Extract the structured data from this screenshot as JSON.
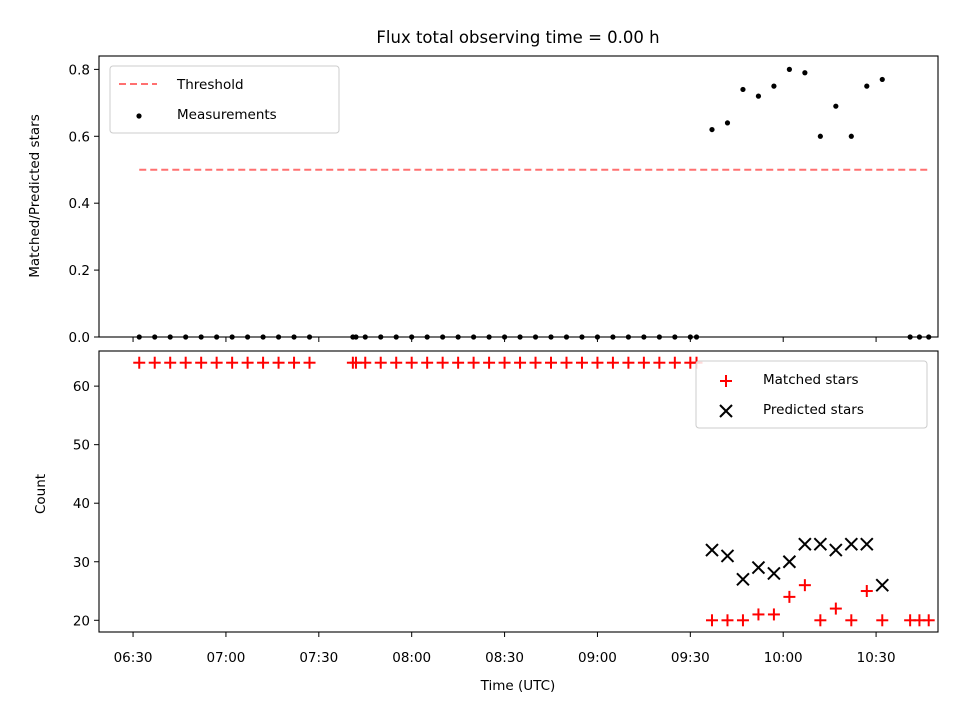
{
  "chart_data": [
    {
      "type": "scatter",
      "title": "Flux total observing time = 0.00 h",
      "xlabel": "",
      "ylabel": "Matched/Predicted stars",
      "xlim": [
        "06:19",
        "10:50"
      ],
      "ylim": [
        0,
        0.84
      ],
      "yticks": [
        0.0,
        0.2,
        0.4,
        0.6,
        0.8
      ],
      "legend_position": "upper-left",
      "threshold": {
        "name": "Threshold",
        "color": "#ff7070",
        "style": "dashed",
        "y": 0.5,
        "x_range": [
          "06:32",
          "10:47"
        ]
      },
      "series": [
        {
          "name": "Measurements",
          "color": "#000000",
          "marker": "dot",
          "points": [
            [
              "06:32",
              0.0
            ],
            [
              "06:37",
              0.0
            ],
            [
              "06:42",
              0.0
            ],
            [
              "06:47",
              0.0
            ],
            [
              "06:52",
              0.0
            ],
            [
              "06:57",
              0.0
            ],
            [
              "07:02",
              0.0
            ],
            [
              "07:07",
              0.0
            ],
            [
              "07:12",
              0.0
            ],
            [
              "07:17",
              0.0
            ],
            [
              "07:22",
              0.0
            ],
            [
              "07:27",
              0.0
            ],
            [
              "07:41",
              0.0
            ],
            [
              "07:42",
              0.0
            ],
            [
              "07:45",
              0.0
            ],
            [
              "07:50",
              0.0
            ],
            [
              "07:55",
              0.0
            ],
            [
              "08:00",
              0.0
            ],
            [
              "08:05",
              0.0
            ],
            [
              "08:10",
              0.0
            ],
            [
              "08:15",
              0.0
            ],
            [
              "08:20",
              0.0
            ],
            [
              "08:25",
              0.0
            ],
            [
              "08:30",
              0.0
            ],
            [
              "08:35",
              0.0
            ],
            [
              "08:40",
              0.0
            ],
            [
              "08:45",
              0.0
            ],
            [
              "08:50",
              0.0
            ],
            [
              "08:55",
              0.0
            ],
            [
              "09:00",
              0.0
            ],
            [
              "09:05",
              0.0
            ],
            [
              "09:10",
              0.0
            ],
            [
              "09:15",
              0.0
            ],
            [
              "09:20",
              0.0
            ],
            [
              "09:25",
              0.0
            ],
            [
              "09:30",
              0.0
            ],
            [
              "09:32",
              0.0
            ],
            [
              "09:37",
              0.62
            ],
            [
              "09:42",
              0.64
            ],
            [
              "09:47",
              0.74
            ],
            [
              "09:52",
              0.72
            ],
            [
              "09:57",
              0.75
            ],
            [
              "10:02",
              0.8
            ],
            [
              "10:07",
              0.79
            ],
            [
              "10:12",
              0.6
            ],
            [
              "10:17",
              0.69
            ],
            [
              "10:22",
              0.6
            ],
            [
              "10:27",
              0.75
            ],
            [
              "10:32",
              0.77
            ],
            [
              "10:41",
              0.0
            ],
            [
              "10:44",
              0.0
            ],
            [
              "10:47",
              0.0
            ]
          ]
        }
      ]
    },
    {
      "type": "scatter",
      "title": "",
      "xlabel": "Time (UTC)",
      "ylabel": "Count",
      "xlim": [
        "06:19",
        "10:50"
      ],
      "ylim": [
        18,
        66
      ],
      "yticks": [
        20,
        30,
        40,
        50,
        60
      ],
      "xticks": [
        "06:30",
        "07:00",
        "07:30",
        "08:00",
        "08:30",
        "09:00",
        "09:30",
        "10:00",
        "10:30"
      ],
      "legend_position": "upper-right",
      "series": [
        {
          "name": "Matched stars",
          "color": "#ff0000",
          "marker": "plus",
          "points": [
            [
              "06:32",
              64
            ],
            [
              "06:37",
              64
            ],
            [
              "06:42",
              64
            ],
            [
              "06:47",
              64
            ],
            [
              "06:52",
              64
            ],
            [
              "06:57",
              64
            ],
            [
              "07:02",
              64
            ],
            [
              "07:07",
              64
            ],
            [
              "07:12",
              64
            ],
            [
              "07:17",
              64
            ],
            [
              "07:22",
              64
            ],
            [
              "07:27",
              64
            ],
            [
              "07:41",
              64
            ],
            [
              "07:42",
              64
            ],
            [
              "07:45",
              64
            ],
            [
              "07:50",
              64
            ],
            [
              "07:55",
              64
            ],
            [
              "08:00",
              64
            ],
            [
              "08:05",
              64
            ],
            [
              "08:10",
              64
            ],
            [
              "08:15",
              64
            ],
            [
              "08:20",
              64
            ],
            [
              "08:25",
              64
            ],
            [
              "08:30",
              64
            ],
            [
              "08:35",
              64
            ],
            [
              "08:40",
              64
            ],
            [
              "08:45",
              64
            ],
            [
              "08:50",
              64
            ],
            [
              "08:55",
              64
            ],
            [
              "09:00",
              64
            ],
            [
              "09:05",
              64
            ],
            [
              "09:10",
              64
            ],
            [
              "09:15",
              64
            ],
            [
              "09:20",
              64
            ],
            [
              "09:25",
              64
            ],
            [
              "09:30",
              64
            ],
            [
              "09:32",
              64
            ],
            [
              "09:37",
              20
            ],
            [
              "09:42",
              20
            ],
            [
              "09:47",
              20
            ],
            [
              "09:52",
              21
            ],
            [
              "09:57",
              21
            ],
            [
              "10:02",
              24
            ],
            [
              "10:07",
              26
            ],
            [
              "10:12",
              20
            ],
            [
              "10:17",
              22
            ],
            [
              "10:22",
              20
            ],
            [
              "10:27",
              25
            ],
            [
              "10:32",
              20
            ],
            [
              "10:41",
              20
            ],
            [
              "10:44",
              20
            ],
            [
              "10:47",
              20
            ]
          ]
        },
        {
          "name": "Predicted stars",
          "color": "#000000",
          "marker": "x",
          "points": [
            [
              "09:37",
              32
            ],
            [
              "09:42",
              31
            ],
            [
              "09:47",
              27
            ],
            [
              "09:52",
              29
            ],
            [
              "09:57",
              28
            ],
            [
              "10:02",
              30
            ],
            [
              "10:07",
              33
            ],
            [
              "10:12",
              33
            ],
            [
              "10:17",
              32
            ],
            [
              "10:22",
              33
            ],
            [
              "10:27",
              33
            ],
            [
              "10:32",
              26
            ]
          ]
        }
      ]
    }
  ]
}
